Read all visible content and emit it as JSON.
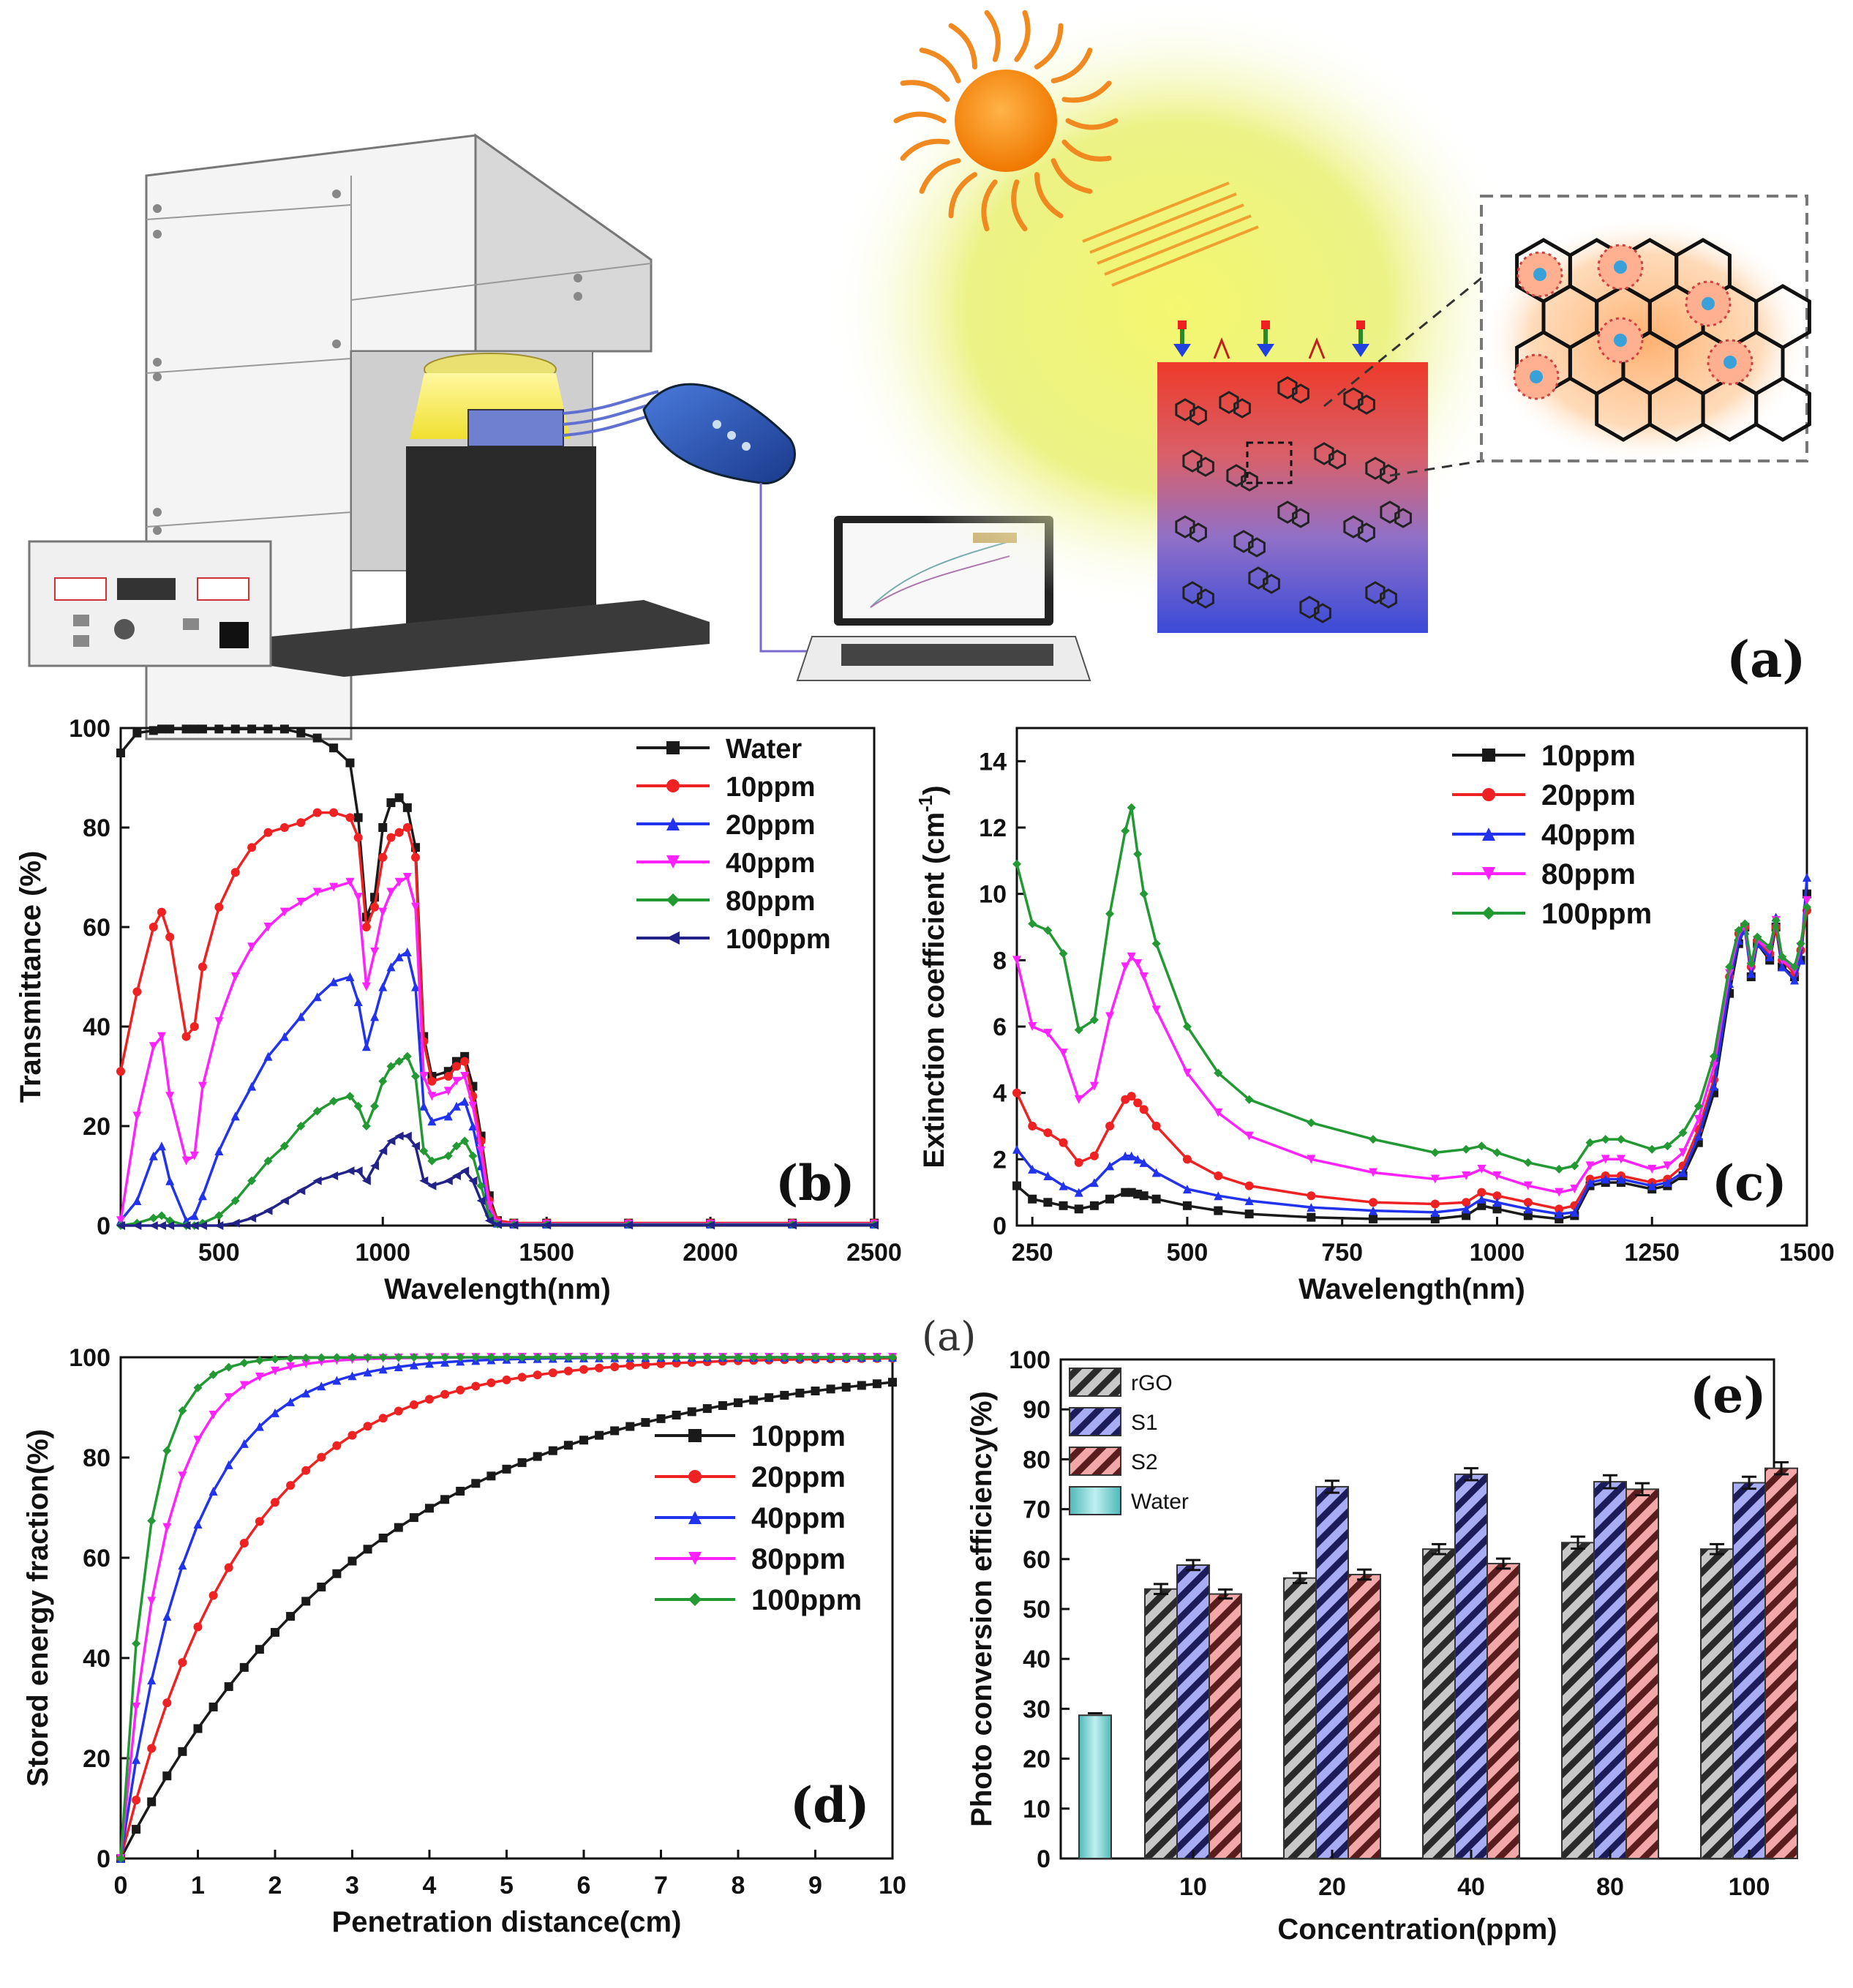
{
  "figure": {
    "panel_labels": {
      "a": "(a)",
      "b": "(b)",
      "c": "(c)",
      "d": "(d)",
      "e": "(e)",
      "stray": "(a)"
    }
  },
  "colors": {
    "black": "#1a1a1a",
    "red": "#ee2222",
    "blue": "#2233ee",
    "magenta": "#ff22ff",
    "green": "#229933",
    "navy": "#222288",
    "cyan": "#7fd8d8"
  },
  "panel_a": {
    "description_free": true,
    "icons": [
      "sun-icon",
      "solar-simulator-icon",
      "data-logger-icon",
      "laptop-icon",
      "nanofluid-cuvette-icon",
      "graphene-sheet-icon"
    ]
  },
  "chart_data": [
    {
      "id": "b",
      "type": "line",
      "xlabel": "Wavelength(nm)",
      "ylabel": "Transmittance (%)",
      "xlim": [
        200,
        2500
      ],
      "ylim": [
        0,
        100
      ],
      "xticks": [
        500,
        1000,
        1500,
        2000,
        2500
      ],
      "yticks": [
        0,
        20,
        40,
        60,
        80,
        100
      ],
      "legend_position": "top-right",
      "x": [
        200,
        250,
        300,
        325,
        350,
        400,
        425,
        450,
        500,
        550,
        600,
        650,
        700,
        750,
        800,
        850,
        900,
        925,
        950,
        975,
        1000,
        1025,
        1050,
        1075,
        1100,
        1125,
        1150,
        1200,
        1225,
        1250,
        1275,
        1300,
        1325,
        1350,
        1400,
        1500,
        1750,
        2000,
        2250,
        2500
      ],
      "series": [
        {
          "name": "Water",
          "color": "#1a1a1a",
          "marker": "square",
          "values": [
            95,
            99,
            99.5,
            99.8,
            99.8,
            99.8,
            99.8,
            99.8,
            99.8,
            99.8,
            99.8,
            99.8,
            99.8,
            99,
            98,
            96,
            93,
            82,
            62,
            66,
            80,
            85,
            86,
            84,
            76,
            38,
            30,
            31,
            33,
            34,
            28,
            18,
            6,
            1,
            0.5,
            0.5,
            0.5,
            0.5,
            0.5,
            0.5
          ]
        },
        {
          "name": "10ppm",
          "color": "#ee2222",
          "marker": "circle",
          "values": [
            31,
            47,
            60,
            63,
            58,
            38,
            40,
            52,
            64,
            71,
            76,
            79,
            80,
            81,
            83,
            83,
            82,
            78,
            60,
            64,
            74,
            78,
            79,
            80,
            74,
            37,
            29,
            30,
            32,
            33,
            26,
            17,
            5,
            1,
            0.5,
            0.5,
            0.5,
            0.5,
            0.5,
            0.5
          ]
        },
        {
          "name": "20ppm",
          "color": "#2233ee",
          "marker": "triangle-up",
          "values": [
            1,
            5,
            14,
            16,
            9,
            1,
            2,
            6,
            15,
            22,
            28,
            34,
            38,
            42,
            46,
            49,
            50,
            45,
            36,
            42,
            48,
            52,
            54,
            55,
            48,
            24,
            21,
            22,
            24,
            25,
            20,
            12,
            3,
            0.5,
            0.3,
            0.3,
            0.3,
            0.3,
            0.3,
            0.3
          ]
        },
        {
          "name": "40ppm",
          "color": "#ff22ff",
          "marker": "triangle-down",
          "values": [
            1,
            22,
            36,
            38,
            26,
            13,
            14,
            28,
            41,
            50,
            56,
            60,
            63,
            65,
            67,
            68,
            69,
            66,
            48,
            55,
            63,
            67,
            69,
            70,
            64,
            30,
            26,
            27,
            29,
            30,
            24,
            15,
            4,
            0.5,
            0.3,
            0.3,
            0.3,
            0.3,
            0.3,
            0.3
          ]
        },
        {
          "name": "80ppm",
          "color": "#229933",
          "marker": "diamond",
          "values": [
            0,
            0.5,
            1.5,
            2,
            1,
            0,
            0,
            0.5,
            2,
            5,
            9,
            13,
            16,
            20,
            23,
            25,
            26,
            24,
            20,
            24,
            29,
            32,
            33,
            34,
            30,
            15,
            13,
            14,
            16,
            17,
            14,
            8,
            2,
            0.3,
            0.2,
            0.2,
            0.2,
            0.2,
            0.2,
            0.2
          ]
        },
        {
          "name": "100ppm",
          "color": "#222288",
          "marker": "triangle-left",
          "values": [
            0,
            0,
            0,
            0,
            0,
            0,
            0,
            0,
            0,
            0.5,
            1.5,
            3,
            5,
            7,
            9,
            10,
            11,
            11,
            9,
            12,
            15,
            17,
            18,
            18,
            16,
            9,
            8,
            9,
            10,
            11,
            9,
            5,
            1,
            0.2,
            0.1,
            0.1,
            0.1,
            0.1,
            0.1,
            0.1
          ]
        }
      ]
    },
    {
      "id": "c",
      "type": "line",
      "xlabel": "Wavelength(nm)",
      "ylabel": "Extinction coefficient (cm-1)",
      "ylabel_main": "Extinction coefficient (cm",
      "ylabel_sup": "-1",
      "ylabel_close": ")",
      "xlim": [
        225,
        1500
      ],
      "ylim": [
        0,
        15
      ],
      "xticks": [
        250,
        500,
        750,
        1000,
        1250,
        1500
      ],
      "yticks": [
        0,
        2,
        4,
        6,
        8,
        10,
        12,
        14
      ],
      "legend_position": "top-left",
      "x": [
        225,
        250,
        275,
        300,
        325,
        350,
        375,
        400,
        410,
        420,
        430,
        450,
        500,
        550,
        600,
        700,
        800,
        900,
        950,
        975,
        1000,
        1050,
        1100,
        1125,
        1150,
        1175,
        1200,
        1250,
        1275,
        1300,
        1325,
        1350,
        1375,
        1390,
        1400,
        1410,
        1420,
        1440,
        1450,
        1460,
        1480,
        1490,
        1500
      ],
      "series": [
        {
          "name": "10ppm",
          "color": "#1a1a1a",
          "marker": "square",
          "values": [
            1.2,
            0.8,
            0.7,
            0.6,
            0.5,
            0.6,
            0.8,
            1.0,
            1.0,
            0.95,
            0.9,
            0.8,
            0.6,
            0.45,
            0.35,
            0.25,
            0.2,
            0.2,
            0.3,
            0.6,
            0.5,
            0.3,
            0.2,
            0.3,
            1.2,
            1.3,
            1.3,
            1.1,
            1.2,
            1.5,
            2.5,
            4.0,
            7.0,
            8.5,
            9.0,
            7.5,
            8.5,
            8.0,
            9.0,
            7.8,
            7.5,
            8.0,
            10.0
          ]
        },
        {
          "name": "20ppm",
          "color": "#ee2222",
          "marker": "circle",
          "values": [
            4.0,
            3.0,
            2.8,
            2.5,
            1.9,
            2.1,
            3.0,
            3.8,
            3.9,
            3.7,
            3.5,
            3.0,
            2.0,
            1.5,
            1.2,
            0.9,
            0.7,
            0.65,
            0.7,
            1.0,
            0.9,
            0.7,
            0.5,
            0.6,
            1.4,
            1.5,
            1.5,
            1.3,
            1.4,
            1.8,
            2.9,
            4.4,
            7.5,
            8.8,
            9.0,
            7.8,
            8.6,
            8.2,
            9.0,
            8.0,
            7.6,
            8.3,
            9.5
          ]
        },
        {
          "name": "40ppm",
          "color": "#2233ee",
          "marker": "triangle-up",
          "values": [
            2.3,
            1.7,
            1.5,
            1.2,
            1.0,
            1.3,
            1.8,
            2.1,
            2.1,
            2.0,
            1.9,
            1.6,
            1.1,
            0.9,
            0.75,
            0.55,
            0.45,
            0.4,
            0.5,
            0.8,
            0.7,
            0.5,
            0.35,
            0.4,
            1.3,
            1.4,
            1.4,
            1.2,
            1.3,
            1.6,
            2.7,
            4.2,
            7.3,
            8.6,
            8.9,
            7.6,
            8.5,
            8.1,
            9.3,
            7.8,
            7.4,
            8.0,
            10.5
          ]
        },
        {
          "name": "80ppm",
          "color": "#ff22ff",
          "marker": "triangle-down",
          "values": [
            8.0,
            6.0,
            5.8,
            5.2,
            3.8,
            4.2,
            6.3,
            7.8,
            8.1,
            7.9,
            7.5,
            6.5,
            4.6,
            3.4,
            2.7,
            2.0,
            1.6,
            1.4,
            1.5,
            1.7,
            1.5,
            1.2,
            1.0,
            1.1,
            1.8,
            2.0,
            2.0,
            1.7,
            1.8,
            2.2,
            3.2,
            4.8,
            7.6,
            8.8,
            9.0,
            7.8,
            8.6,
            8.3,
            9.2,
            8.0,
            7.7,
            8.4,
            9.8
          ]
        },
        {
          "name": "100ppm",
          "color": "#229933",
          "marker": "diamond",
          "values": [
            10.9,
            9.1,
            8.9,
            8.2,
            5.9,
            6.2,
            9.4,
            11.9,
            12.6,
            11.2,
            10.0,
            8.5,
            6.0,
            4.6,
            3.8,
            3.1,
            2.6,
            2.2,
            2.3,
            2.4,
            2.2,
            1.9,
            1.7,
            1.8,
            2.5,
            2.6,
            2.6,
            2.3,
            2.4,
            2.8,
            3.6,
            5.1,
            7.8,
            8.9,
            9.1,
            7.9,
            8.7,
            8.4,
            9.2,
            8.1,
            7.8,
            8.5,
            9.6
          ]
        }
      ]
    },
    {
      "id": "d",
      "type": "line",
      "xlabel": "Penetration distance(cm)",
      "ylabel": "Stored energy fraction(%)",
      "xlim": [
        0,
        10
      ],
      "ylim": [
        0,
        100
      ],
      "xticks": [
        0,
        1,
        2,
        3,
        4,
        5,
        6,
        7,
        8,
        9,
        10
      ],
      "yticks": [
        0,
        20,
        40,
        60,
        80,
        100
      ],
      "legend_position": "center-right",
      "model": "y = 100 * (1 - exp(-k * x)) sampled every 0.2 cm",
      "series": [
        {
          "name": "10ppm",
          "color": "#1a1a1a",
          "marker": "square",
          "k": 0.3
        },
        {
          "name": "20ppm",
          "color": "#ee2222",
          "marker": "circle",
          "k": 0.62
        },
        {
          "name": "40ppm",
          "color": "#2233ee",
          "marker": "triangle-up",
          "k": 1.1
        },
        {
          "name": "80ppm",
          "color": "#ff22ff",
          "marker": "triangle-down",
          "k": 1.8
        },
        {
          "name": "100ppm",
          "color": "#229933",
          "marker": "diamond",
          "k": 2.8
        }
      ]
    },
    {
      "id": "e",
      "type": "bar",
      "xlabel": "Concentration(ppm)",
      "ylabel": "Photo conversion efficiency(%)",
      "ylim": [
        0,
        100
      ],
      "yticks": [
        0,
        10,
        20,
        30,
        40,
        50,
        60,
        70,
        80,
        90,
        100
      ],
      "categories": [
        "10",
        "20",
        "40",
        "80",
        "100"
      ],
      "legend_position": "top-left",
      "water": {
        "name": "Water",
        "value": 28.7,
        "error": 0.4,
        "color": "#7fd8d8"
      },
      "series": [
        {
          "name": "rGO",
          "color": "#9a9a9a",
          "values": [
            54.0,
            56.2,
            62.0,
            63.3,
            62.0
          ],
          "errors": [
            1.0,
            1.0,
            1.0,
            1.2,
            1.0
          ]
        },
        {
          "name": "S1",
          "color": "#6a70e6",
          "values": [
            58.8,
            74.5,
            77.0,
            75.5,
            75.3
          ],
          "errors": [
            1.0,
            1.2,
            1.2,
            1.3,
            1.2
          ]
        },
        {
          "name": "S2",
          "color": "#e07a7a",
          "values": [
            53.0,
            56.9,
            59.1,
            74.0,
            78.2
          ],
          "errors": [
            0.9,
            1.0,
            1.0,
            1.2,
            1.2
          ]
        }
      ]
    }
  ]
}
